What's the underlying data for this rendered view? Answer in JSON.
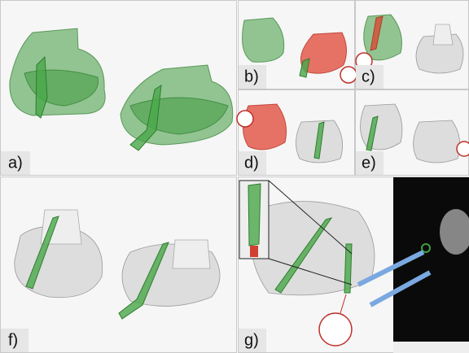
{
  "panels": [
    {
      "label": "a)"
    },
    {
      "label": "b)"
    },
    {
      "label": "c)"
    },
    {
      "label": "d)"
    },
    {
      "label": "e)"
    },
    {
      "label": "f)"
    },
    {
      "label": "g)"
    }
  ]
}
